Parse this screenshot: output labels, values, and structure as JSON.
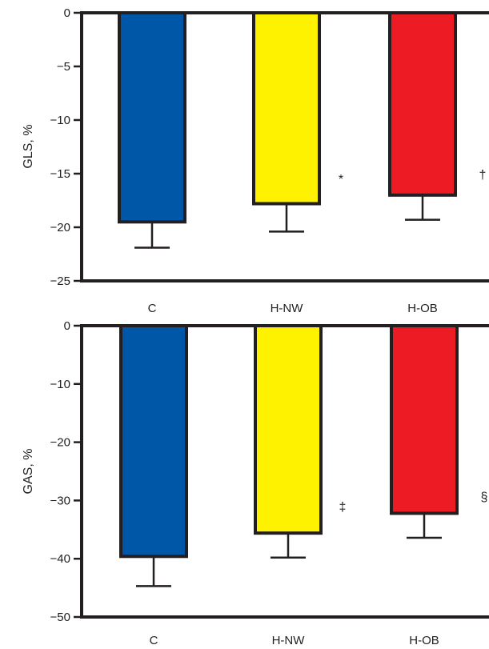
{
  "chart_data": [
    {
      "type": "bar",
      "ylabel": "GLS, %",
      "categories": [
        "C",
        "H-NW",
        "H-OB"
      ],
      "values": [
        -19.5,
        -17.8,
        -17.0
      ],
      "error": [
        2.4,
        2.6,
        2.3
      ],
      "ylim": [
        -25,
        0
      ],
      "yticks": [
        0,
        -5,
        -10,
        -15,
        -20,
        -25
      ],
      "ytick_labels": [
        "0",
        "−5",
        "−10",
        "−15",
        "−20",
        "−25"
      ],
      "colors": [
        "#0057a8",
        "#fff200",
        "#ed1c24"
      ],
      "annotations": [
        "",
        "*",
        "†"
      ],
      "grid": false
    },
    {
      "type": "bar",
      "ylabel": "GAS, %",
      "categories": [
        "C",
        "H-NW",
        "H-OB"
      ],
      "values": [
        -39.6,
        -35.6,
        -32.2
      ],
      "error": [
        5.1,
        4.2,
        4.2
      ],
      "ylim": [
        -50,
        0
      ],
      "yticks": [
        0,
        -10,
        -20,
        -30,
        -40,
        -50
      ],
      "ytick_labels": [
        "0",
        "−10",
        "−20",
        "−30",
        "−40",
        "−50"
      ],
      "colors": [
        "#0057a8",
        "#fff200",
        "#ed1c24"
      ],
      "annotations": [
        "",
        "‡",
        "§"
      ],
      "grid": false
    }
  ]
}
